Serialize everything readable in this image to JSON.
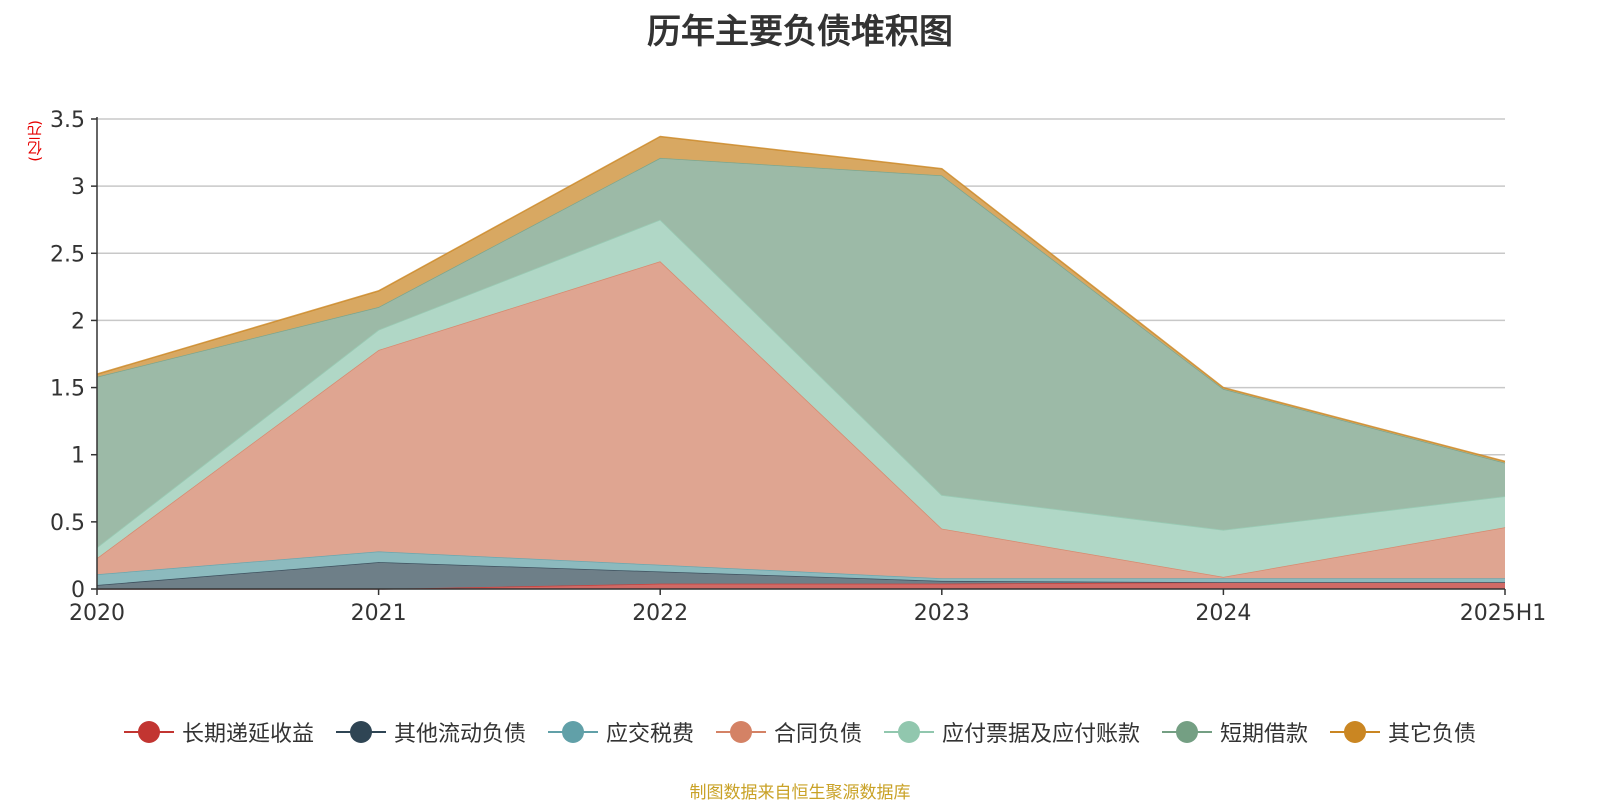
{
  "chart_data": {
    "type": "area",
    "stacked": true,
    "title": "历年主要负债堆积图",
    "unit_label": "(亿元)",
    "x": [
      "2020",
      "2021",
      "2022",
      "2023",
      "2024",
      "2025H1"
    ],
    "ylim": [
      0,
      3.5
    ],
    "yticks": [
      0,
      0.5,
      1,
      1.5,
      2,
      2.5,
      3,
      3.5
    ],
    "ytick_labels": [
      "0",
      "0.5",
      "1",
      "1.5",
      "2",
      "2.5",
      "3",
      "3.5"
    ],
    "grid": true,
    "legend_position": "bottom",
    "series": [
      {
        "name": "长期递延收益",
        "color": "#c23531",
        "fill": "#d06a66",
        "values": [
          0.0,
          0.0,
          0.04,
          0.04,
          0.05,
          0.05
        ]
      },
      {
        "name": "其他流动负债",
        "color": "#2f4554",
        "fill": "#6e7f88",
        "values": [
          0.03,
          0.2,
          0.09,
          0.02,
          0.0,
          0.0
        ]
      },
      {
        "name": "应交税费",
        "color": "#61a0a8",
        "fill": "#8cbabe",
        "values": [
          0.08,
          0.08,
          0.05,
          0.02,
          0.03,
          0.03
        ]
      },
      {
        "name": "合同负债",
        "color": "#d48265",
        "fill": "#dfa591",
        "values": [
          0.12,
          1.5,
          2.26,
          0.37,
          0.01,
          0.38
        ]
      },
      {
        "name": "应付票据及应付账款",
        "color": "#91c7ae",
        "fill": "#b0d7c6",
        "values": [
          0.08,
          0.15,
          0.31,
          0.25,
          0.35,
          0.23
        ]
      },
      {
        "name": "短期借款",
        "color": "#749f83",
        "fill": "#9cbaa7",
        "values": [
          1.27,
          0.17,
          0.46,
          2.38,
          1.05,
          0.25
        ]
      },
      {
        "name": "其它负债",
        "color": "#ca8622",
        "fill": "#d8a862",
        "values": [
          0.02,
          0.12,
          0.16,
          0.05,
          0.01,
          0.01
        ]
      }
    ]
  },
  "source_note": "制图数据来自恒生聚源数据库"
}
